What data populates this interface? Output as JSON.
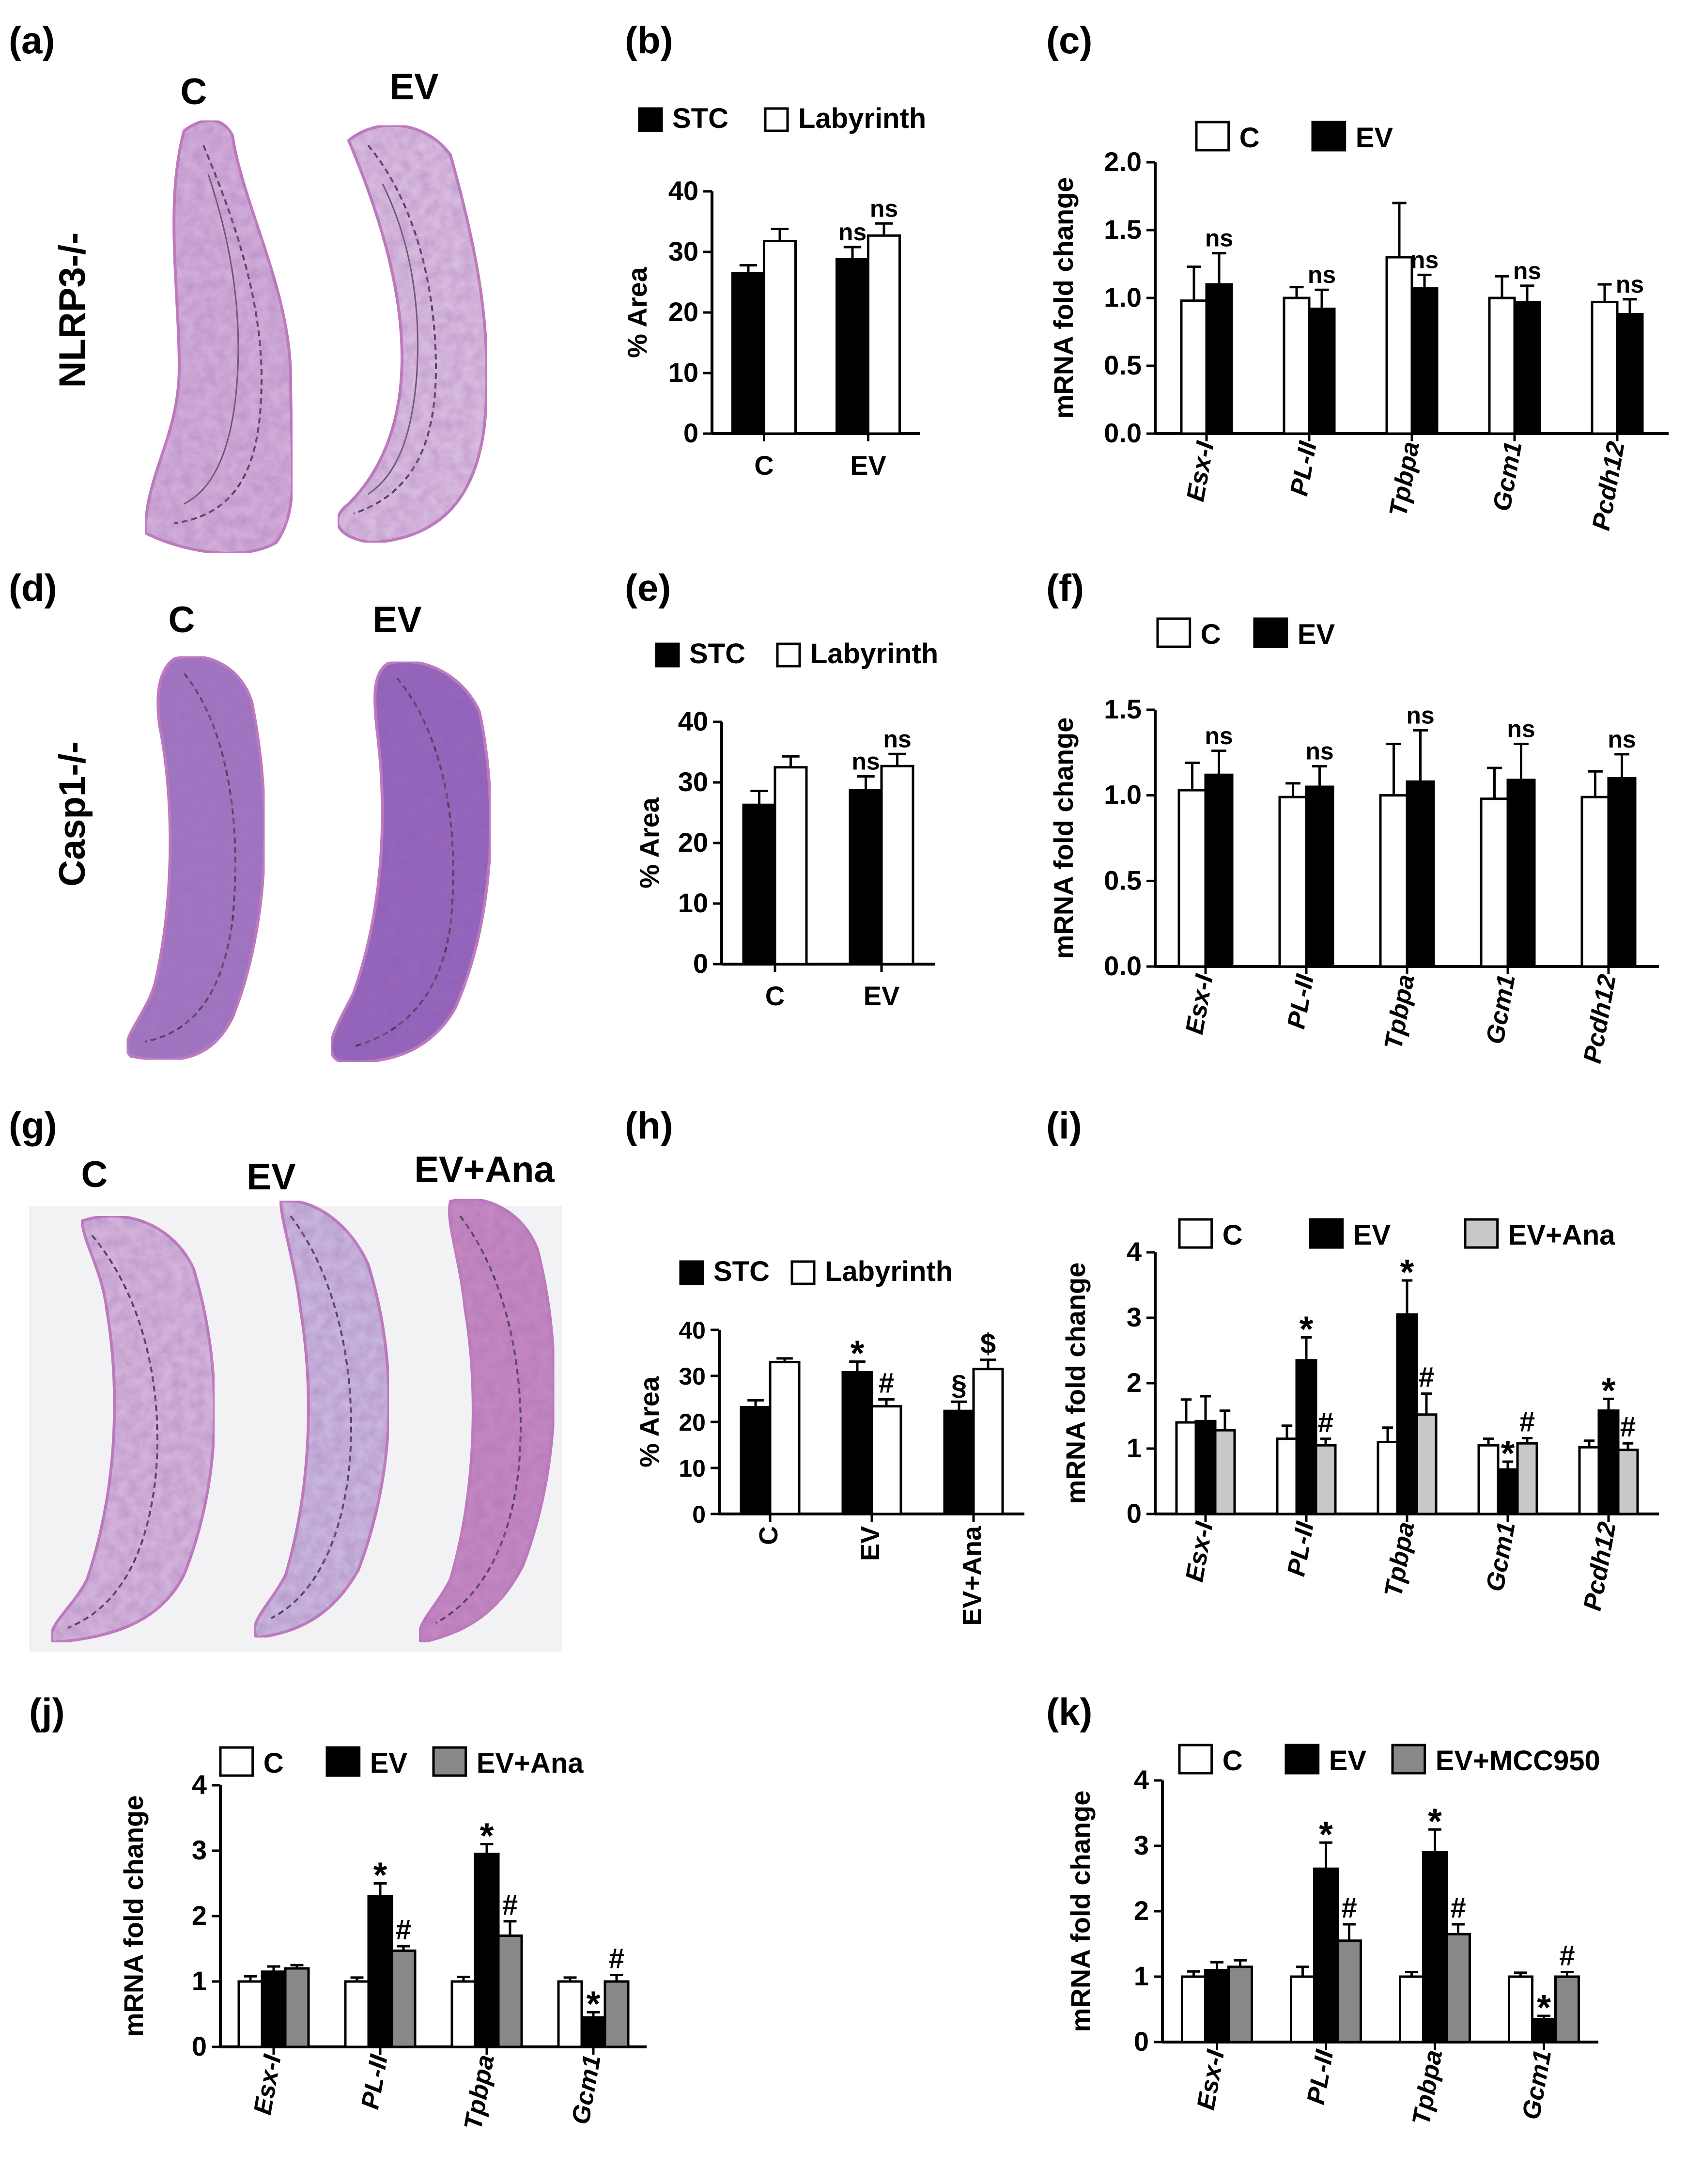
{
  "figure": {
    "panel_letters": [
      "(a)",
      "(b)",
      "(c)",
      "(d)",
      "(e)",
      "(f)",
      "(g)",
      "(h)",
      "(i)",
      "(j)",
      "(k)"
    ],
    "row_labels": [
      "NLRP3-/-",
      "Casp1-/-"
    ],
    "image_labels": {
      "a": [
        "C",
        "EV"
      ],
      "d": [
        "C",
        "EV"
      ],
      "g": [
        "C",
        "EV",
        "EV+Ana"
      ]
    },
    "colors": {
      "c_group": "#ffffff",
      "ev_group": "#000000",
      "treat_group": "#c8c8c8",
      "treat_group_dark": "#888888",
      "tissue_pink": "#c77fc3",
      "tissue_purple": "#9268be"
    }
  },
  "chart_data": [
    {
      "id": "b",
      "type": "bar",
      "ylabel": "% Area",
      "ylim": [
        0,
        40
      ],
      "yticks": [
        0,
        10,
        20,
        30,
        40
      ],
      "categories": [
        "C",
        "EV"
      ],
      "series": [
        {
          "name": "STC",
          "fill": "black",
          "values": [
            26.5,
            28.8
          ],
          "errors": [
            1.3,
            2.0
          ]
        },
        {
          "name": "Labyrinth",
          "fill": "white",
          "values": [
            31.8,
            32.7
          ],
          "errors": [
            2.0,
            2.0
          ]
        }
      ],
      "annotations": [
        {
          "text": "ns",
          "series": 0,
          "cat": 1
        },
        {
          "text": "ns",
          "series": 1,
          "cat": 1
        }
      ]
    },
    {
      "id": "c",
      "type": "bar",
      "ylabel": "mRNA fold change",
      "ylim": [
        0,
        2.0
      ],
      "yticks": [
        "0.0",
        "0.5",
        "1.0",
        "1.5",
        "2.0"
      ],
      "categories": [
        "Esx-I",
        "PL-II",
        "Tpbpa",
        "Gcm1",
        "Pcdh12"
      ],
      "series": [
        {
          "name": "C",
          "fill": "white",
          "values": [
            0.98,
            1.0,
            1.3,
            1.0,
            0.97
          ],
          "errors": [
            0.25,
            0.08,
            0.4,
            0.16,
            0.13
          ]
        },
        {
          "name": "EV",
          "fill": "black",
          "values": [
            1.1,
            0.92,
            1.07,
            0.97,
            0.88
          ],
          "errors": [
            0.23,
            0.14,
            0.1,
            0.12,
            0.11
          ]
        }
      ],
      "annotations": [
        {
          "text": "ns",
          "series": 1,
          "cat": 0
        },
        {
          "text": "ns",
          "series": 1,
          "cat": 1
        },
        {
          "text": "ns",
          "series": 1,
          "cat": 2
        },
        {
          "text": "ns",
          "series": 1,
          "cat": 3
        },
        {
          "text": "ns",
          "series": 1,
          "cat": 4
        }
      ]
    },
    {
      "id": "e",
      "type": "bar",
      "ylabel": "% Area",
      "ylim": [
        0,
        40
      ],
      "yticks": [
        0,
        10,
        20,
        30,
        40
      ],
      "categories": [
        "C",
        "EV"
      ],
      "series": [
        {
          "name": "STC",
          "fill": "black",
          "values": [
            26.3,
            28.7
          ],
          "errors": [
            2.3,
            2.3
          ]
        },
        {
          "name": "Labyrinth",
          "fill": "white",
          "values": [
            32.5,
            32.7
          ],
          "errors": [
            1.8,
            2.0
          ]
        }
      ],
      "annotations": [
        {
          "text": "ns",
          "series": 0,
          "cat": 1
        },
        {
          "text": "ns",
          "series": 1,
          "cat": 1
        }
      ]
    },
    {
      "id": "f",
      "type": "bar",
      "ylabel": "mRNA fold change",
      "ylim": [
        0,
        1.5
      ],
      "yticks": [
        "0.0",
        "0.5",
        "1.0",
        "1.5"
      ],
      "categories": [
        "Esx-I",
        "PL-II",
        "Tpbpa",
        "Gcm1",
        "Pcdh12"
      ],
      "series": [
        {
          "name": "C",
          "fill": "white",
          "values": [
            1.03,
            0.99,
            1.0,
            0.98,
            0.99
          ],
          "errors": [
            0.16,
            0.08,
            0.3,
            0.18,
            0.15
          ]
        },
        {
          "name": "EV",
          "fill": "black",
          "values": [
            1.12,
            1.05,
            1.08,
            1.09,
            1.1
          ],
          "errors": [
            0.14,
            0.12,
            0.3,
            0.21,
            0.14
          ]
        }
      ],
      "annotations": [
        {
          "text": "ns",
          "series": 1,
          "cat": 0
        },
        {
          "text": "ns",
          "series": 1,
          "cat": 1
        },
        {
          "text": "ns",
          "series": 1,
          "cat": 2
        },
        {
          "text": "ns",
          "series": 1,
          "cat": 3
        },
        {
          "text": "ns",
          "series": 1,
          "cat": 4
        }
      ]
    },
    {
      "id": "h",
      "type": "bar",
      "ylabel": "% Area",
      "ylim": [
        0,
        40
      ],
      "yticks": [
        0,
        10,
        20,
        30,
        40
      ],
      "categories": [
        "C",
        "EV",
        "EV+Ana"
      ],
      "series": [
        {
          "name": "STC",
          "fill": "black",
          "values": [
            23.2,
            30.8,
            22.4
          ],
          "errors": [
            1.5,
            2.3,
            2.0
          ]
        },
        {
          "name": "Labyrinth",
          "fill": "white",
          "values": [
            33.0,
            23.4,
            31.5
          ],
          "errors": [
            0.8,
            1.5,
            2.0
          ]
        }
      ],
      "annotations": [
        {
          "text": "*",
          "series": 0,
          "cat": 1
        },
        {
          "text": "#",
          "series": 1,
          "cat": 1
        },
        {
          "text": "§",
          "series": 0,
          "cat": 2
        },
        {
          "text": "$",
          "series": 1,
          "cat": 2
        }
      ]
    },
    {
      "id": "i",
      "type": "bar",
      "ylabel": "mRNA fold change",
      "ylim": [
        0,
        4
      ],
      "yticks": [
        0,
        1,
        2,
        3,
        4
      ],
      "categories": [
        "Esx-I",
        "PL-II",
        "Tpbpa",
        "Gcm1",
        "Pcdh12"
      ],
      "series": [
        {
          "name": "C",
          "fill": "white",
          "values": [
            1.4,
            1.15,
            1.1,
            1.05,
            1.02
          ],
          "errors": [
            0.35,
            0.2,
            0.22,
            0.1,
            0.1
          ]
        },
        {
          "name": "EV",
          "fill": "black",
          "values": [
            1.42,
            2.35,
            3.05,
            0.68,
            1.58
          ],
          "errors": [
            0.38,
            0.35,
            0.52,
            0.12,
            0.18
          ]
        },
        {
          "name": "EV+Ana",
          "fill": "light",
          "values": [
            1.28,
            1.05,
            1.52,
            1.08,
            0.98
          ],
          "errors": [
            0.3,
            0.1,
            0.32,
            0.08,
            0.1
          ]
        }
      ],
      "annotations": [
        {
          "text": "*",
          "series": 1,
          "cat": 1
        },
        {
          "text": "#",
          "series": 2,
          "cat": 1
        },
        {
          "text": "*",
          "series": 1,
          "cat": 2
        },
        {
          "text": "#",
          "series": 2,
          "cat": 2
        },
        {
          "text": "*",
          "series": 1,
          "cat": 3
        },
        {
          "text": "#",
          "series": 2,
          "cat": 3
        },
        {
          "text": "*",
          "series": 1,
          "cat": 4
        },
        {
          "text": "#",
          "series": 2,
          "cat": 4
        }
      ]
    },
    {
      "id": "j",
      "type": "bar",
      "ylabel": "mRNA fold change",
      "ylim": [
        0,
        4
      ],
      "yticks": [
        0,
        1,
        2,
        3,
        4
      ],
      "categories": [
        "Esx-I",
        "PL-II",
        "Tpbpa",
        "Gcm1"
      ],
      "series": [
        {
          "name": "C",
          "fill": "white",
          "values": [
            1.0,
            1.0,
            1.0,
            1.0
          ],
          "errors": [
            0.08,
            0.06,
            0.07,
            0.06
          ]
        },
        {
          "name": "EV",
          "fill": "black",
          "values": [
            1.15,
            2.3,
            2.95,
            0.45
          ],
          "errors": [
            0.08,
            0.2,
            0.15,
            0.08
          ]
        },
        {
          "name": "EV+Ana",
          "fill": "dark",
          "values": [
            1.2,
            1.47,
            1.7,
            1.0
          ],
          "errors": [
            0.05,
            0.07,
            0.22,
            0.1
          ]
        }
      ],
      "annotations": [
        {
          "text": "*",
          "series": 1,
          "cat": 1
        },
        {
          "text": "#",
          "series": 2,
          "cat": 1
        },
        {
          "text": "*",
          "series": 1,
          "cat": 2
        },
        {
          "text": "#",
          "series": 2,
          "cat": 2
        },
        {
          "text": "*",
          "series": 1,
          "cat": 3
        },
        {
          "text": "#",
          "series": 2,
          "cat": 3
        }
      ]
    },
    {
      "id": "k",
      "type": "bar",
      "ylabel": "mRNA fold change",
      "ylim": [
        0,
        4
      ],
      "yticks": [
        0,
        1,
        2,
        3,
        4
      ],
      "categories": [
        "Esx-I",
        "PL-II",
        "Tpbpa",
        "Gcm1"
      ],
      "series": [
        {
          "name": "C",
          "fill": "white",
          "values": [
            1.0,
            1.0,
            1.0,
            1.0
          ],
          "errors": [
            0.08,
            0.15,
            0.07,
            0.06
          ]
        },
        {
          "name": "EV",
          "fill": "black",
          "values": [
            1.1,
            2.65,
            2.9,
            0.35
          ],
          "errors": [
            0.12,
            0.4,
            0.35,
            0.05
          ]
        },
        {
          "name": "EV+MCC950",
          "fill": "dark",
          "values": [
            1.15,
            1.55,
            1.65,
            1.0
          ],
          "errors": [
            0.1,
            0.25,
            0.15,
            0.07
          ]
        }
      ],
      "annotations": [
        {
          "text": "*",
          "series": 1,
          "cat": 1
        },
        {
          "text": "#",
          "series": 2,
          "cat": 1
        },
        {
          "text": "*",
          "series": 1,
          "cat": 2
        },
        {
          "text": "#",
          "series": 2,
          "cat": 2
        },
        {
          "text": "*",
          "series": 1,
          "cat": 3
        },
        {
          "text": "#",
          "series": 2,
          "cat": 3
        }
      ]
    }
  ]
}
